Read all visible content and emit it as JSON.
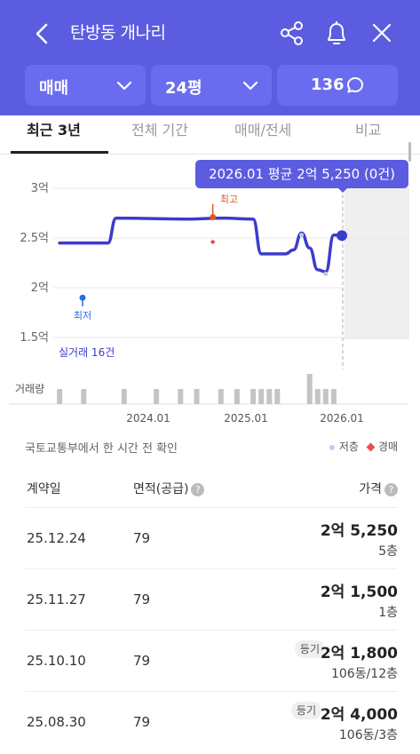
{
  "header": {
    "title": "탄방동 개나리",
    "filters": {
      "deal_type": "매매",
      "size": "24평",
      "count": "136"
    }
  },
  "tabs": [
    "최근 3년",
    "전체 기간",
    "매매/전세",
    "비교"
  ],
  "chart": {
    "tooltip": "2026.01 평균 2억 5,250 (0건)",
    "y_ticks": [
      "3억",
      "2.5억",
      "2억",
      "1.5억"
    ],
    "high_label": "최고",
    "low_label": "최저",
    "count_label": "실거래 16건",
    "volume_label": "거래량",
    "x_ticks": [
      "2024.01",
      "2025.01",
      "2026.01"
    ]
  },
  "info": {
    "note": "국토교통부에서 한 시간 전 확인",
    "legend_low_floor": "저층",
    "legend_auction": "경매"
  },
  "table": {
    "headers": {
      "date": "계약일",
      "area": "면적(공급)",
      "price": "가격"
    },
    "rows": [
      {
        "date": "25.12.24",
        "area": "79",
        "price": "2억 5,250",
        "floor": "5층",
        "badge": ""
      },
      {
        "date": "25.11.27",
        "area": "79",
        "price": "2억 1,500",
        "floor": "1층",
        "badge": ""
      },
      {
        "date": "25.10.10",
        "area": "79",
        "price": "2억 1,800",
        "floor": "106동/12층",
        "badge": "등기"
      },
      {
        "date": "25.08.30",
        "area": "79",
        "price": "2억 4,000",
        "floor": "106동/3층",
        "badge": "등기"
      }
    ]
  },
  "chart_data": {
    "type": "line",
    "title": "",
    "xlabel": "",
    "ylabel": "",
    "y_unit": "억",
    "ylim": [
      1.5,
      3.0
    ],
    "x_ticks": [
      "2024.01",
      "2025.01",
      "2026.01"
    ],
    "series": [
      {
        "x": [
          "2023.02",
          "2023.08",
          "2023.09",
          "2024.06",
          "2024.10",
          "2025.02",
          "2025.03",
          "2025.06",
          "2025.07",
          "2025.08",
          "2025.09",
          "2025.10",
          "2025.11",
          "2025.12",
          "2026.01"
        ],
        "values": [
          2.45,
          2.45,
          2.7,
          2.69,
          2.7,
          2.69,
          2.34,
          2.34,
          2.38,
          2.55,
          2.4,
          2.18,
          2.16,
          2.53,
          2.525
        ]
      }
    ],
    "high": {
      "label": "최고",
      "x": "2024.09",
      "value": 2.71
    },
    "low": {
      "label": "최저",
      "x": "2023.02",
      "value": 1.9
    },
    "auction_points": [
      {
        "x": "2024.09",
        "value": 2.46
      }
    ],
    "low_floor_points": [
      {
        "x": "2025.08",
        "value": 2.53
      },
      {
        "x": "2025.11",
        "value": 2.14
      }
    ],
    "volume": {
      "x": [
        "2023.02",
        "2023.05",
        "2023.10",
        "2024.02",
        "2024.05",
        "2024.07",
        "2024.10",
        "2024.12",
        "2025.02",
        "2025.03",
        "2025.04",
        "2025.05",
        "2025.09",
        "2025.10",
        "2025.11",
        "2025.12"
      ],
      "values": [
        1,
        1,
        1,
        1,
        1,
        1,
        1,
        1,
        1,
        1,
        1,
        1,
        2,
        1,
        1,
        1
      ]
    },
    "legend": [
      "저층",
      "경매"
    ]
  }
}
